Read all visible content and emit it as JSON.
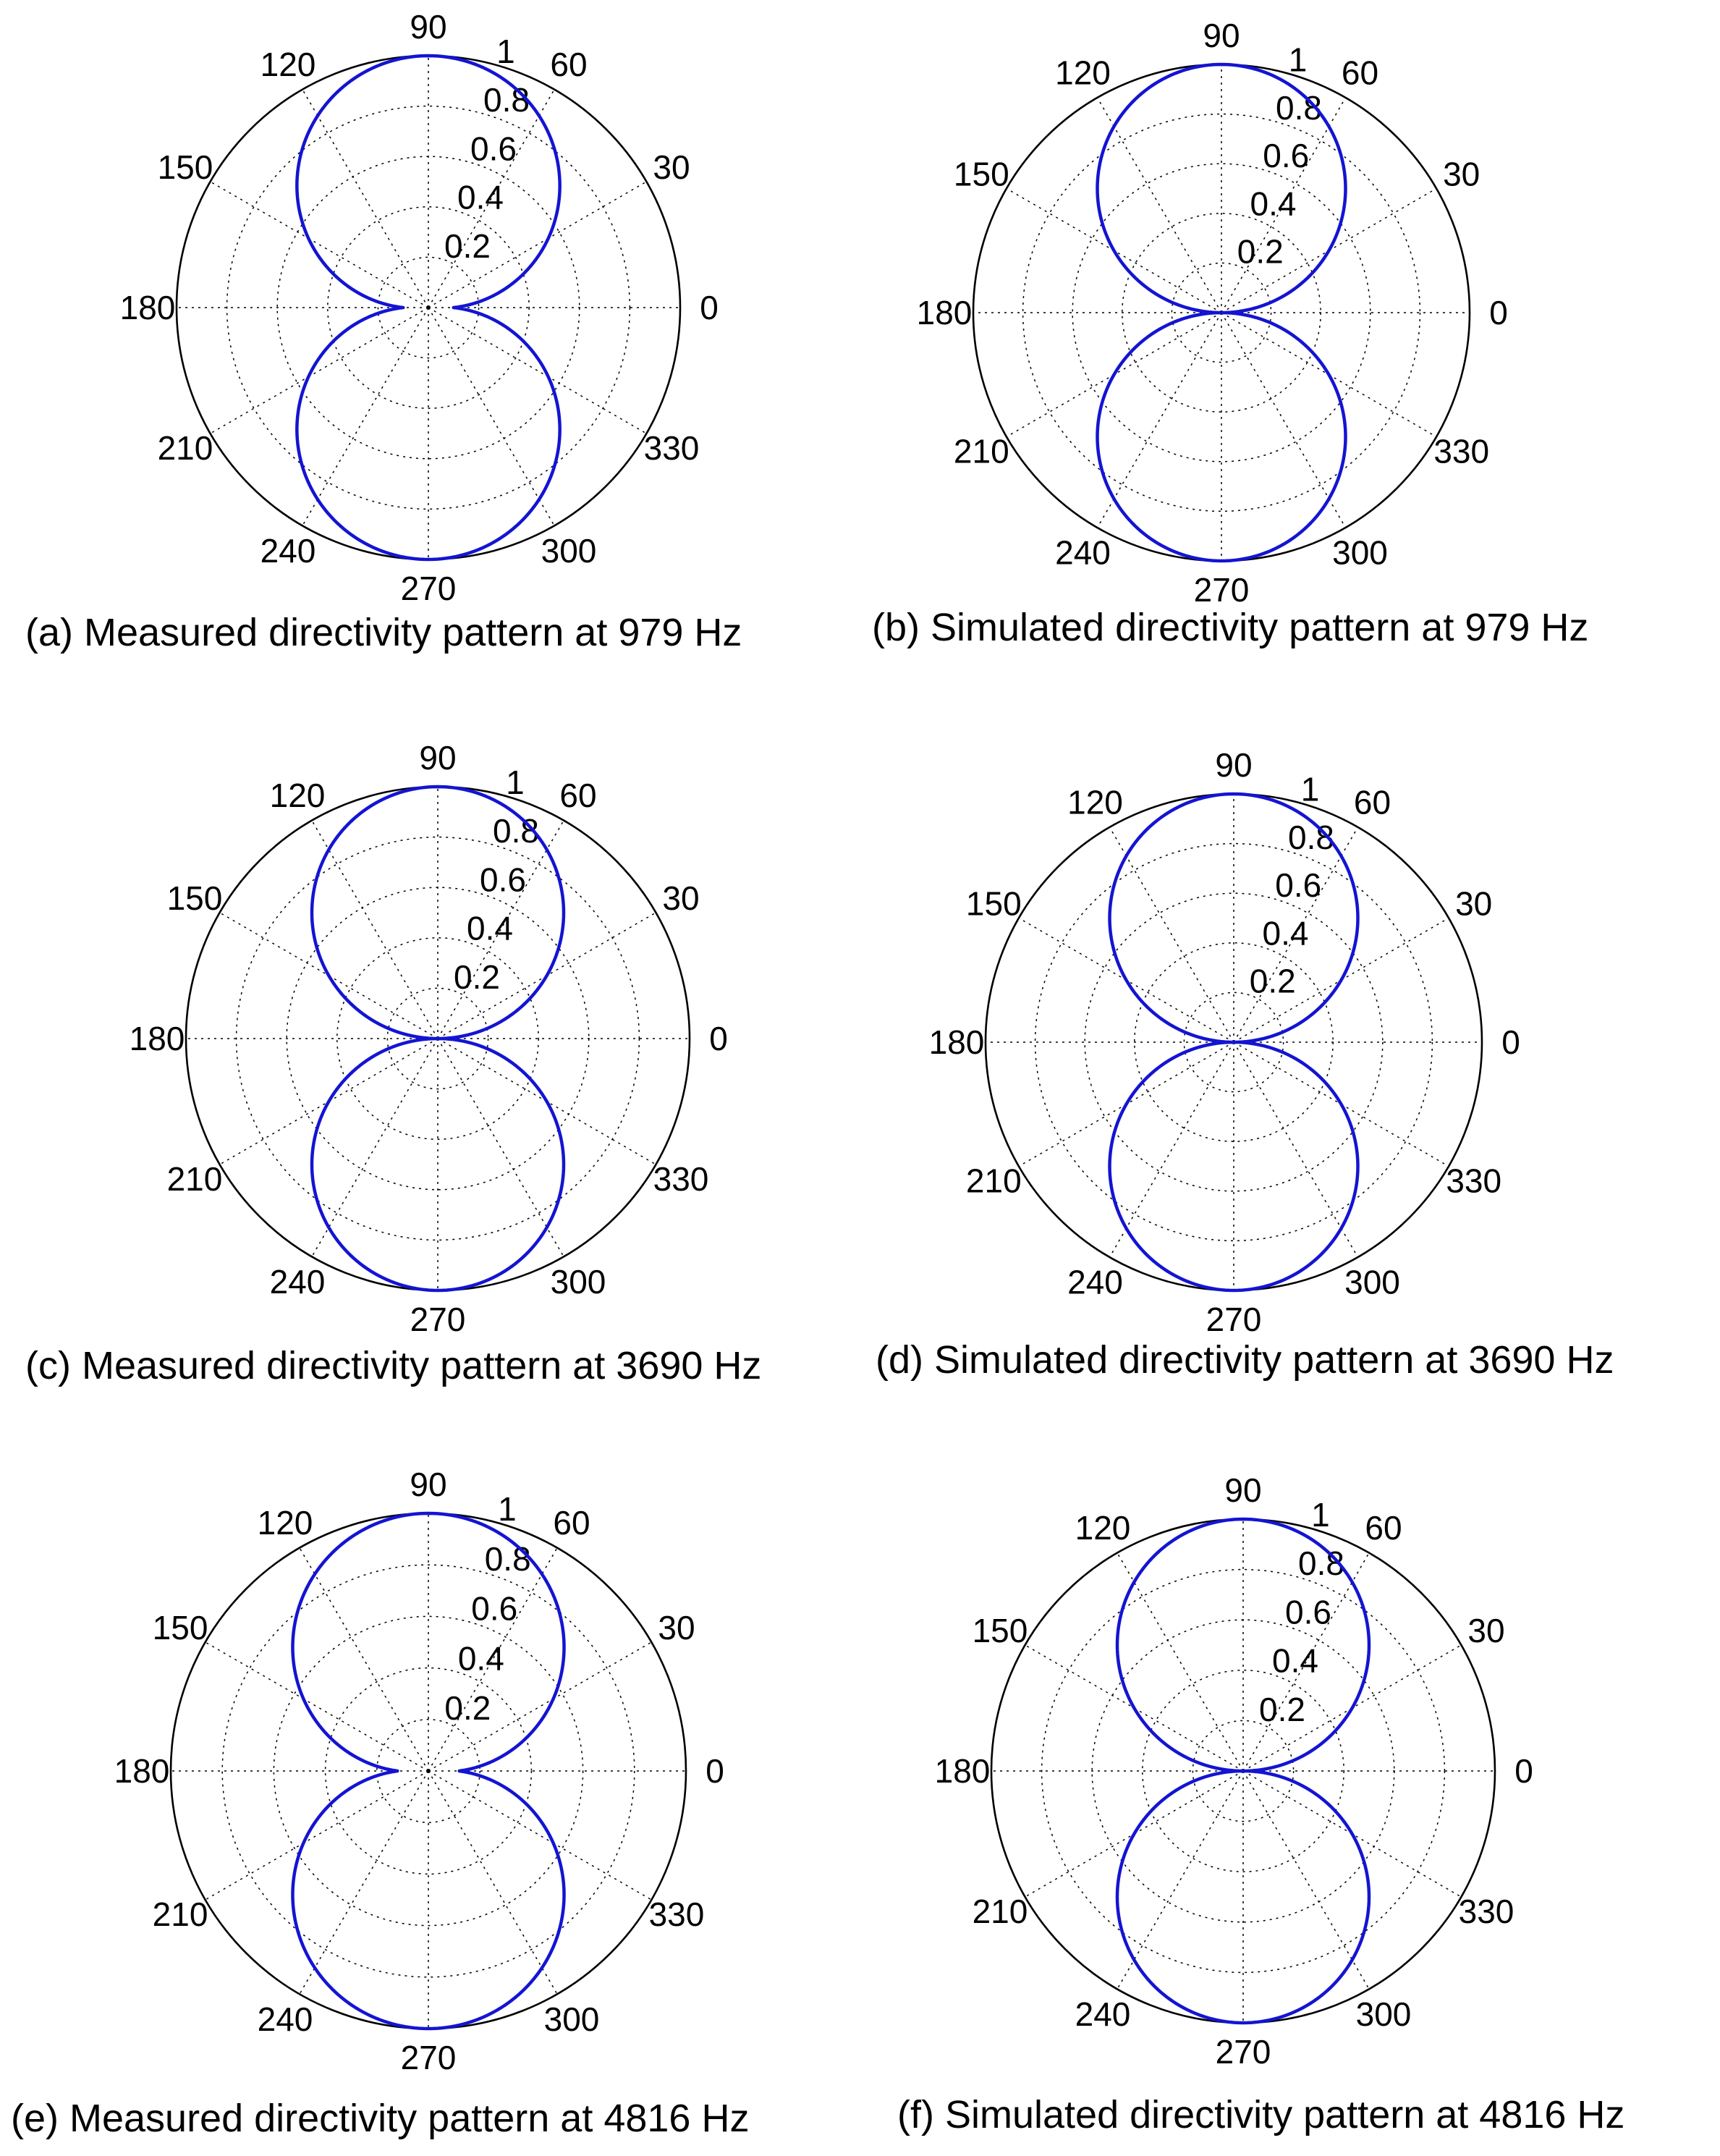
{
  "figure": {
    "panels": [
      {
        "caption": "(a) Measured directivity pattern at 979 Hz"
      },
      {
        "caption": "(b) Simulated directivity pattern at 979 Hz"
      },
      {
        "caption": "(c) Measured directivity pattern at 3690 Hz"
      },
      {
        "caption": "(d) Simulated directivity pattern at 3690 Hz"
      },
      {
        "caption": "(e) Measured directivity pattern at 4816 Hz"
      },
      {
        "caption": "(f) Simulated directivity pattern at 4816 Hz"
      }
    ]
  },
  "chart_data": [
    {
      "type": "polar",
      "angle_ticks": [
        "0",
        "30",
        "60",
        "90",
        "120",
        "150",
        "180",
        "210",
        "240",
        "270",
        "300",
        "330"
      ],
      "radial_ticks": [
        "0.2",
        "0.4",
        "0.6",
        "0.8",
        "1"
      ],
      "rlim": [
        0,
        1
      ],
      "grid": true,
      "line_color": "#1414d2",
      "series": [
        {
          "pattern": "dipole (figure-eight)",
          "null_depth": 0.1,
          "angles_deg": [
            0,
            15,
            30,
            45,
            60,
            75,
            90,
            105,
            120,
            135,
            150,
            165,
            180,
            195,
            210,
            225,
            240,
            255,
            270,
            285,
            300,
            315,
            330,
            345
          ],
          "values": [
            0.1,
            0.33,
            0.55,
            0.73,
            0.87,
            0.97,
            1.0,
            0.97,
            0.87,
            0.73,
            0.55,
            0.33,
            0.1,
            0.33,
            0.55,
            0.73,
            0.87,
            0.97,
            1.0,
            0.97,
            0.87,
            0.73,
            0.55,
            0.33
          ]
        }
      ]
    },
    {
      "type": "polar",
      "angle_ticks": [
        "0",
        "30",
        "60",
        "90",
        "120",
        "150",
        "180",
        "210",
        "240",
        "270",
        "300",
        "330"
      ],
      "radial_ticks": [
        "0.2",
        "0.4",
        "0.6",
        "0.8",
        "1"
      ],
      "rlim": [
        0,
        1
      ],
      "grid": true,
      "line_color": "#1414d2",
      "series": [
        {
          "pattern": "dipole (figure-eight)",
          "null_depth": 0.0,
          "angles_deg": [
            0,
            15,
            30,
            45,
            60,
            75,
            90,
            105,
            120,
            135,
            150,
            165,
            180,
            195,
            210,
            225,
            240,
            255,
            270,
            285,
            300,
            315,
            330,
            345
          ],
          "values": [
            0.0,
            0.26,
            0.5,
            0.71,
            0.87,
            0.97,
            1.0,
            0.97,
            0.87,
            0.71,
            0.5,
            0.26,
            0.0,
            0.26,
            0.5,
            0.71,
            0.87,
            0.97,
            1.0,
            0.97,
            0.87,
            0.71,
            0.5,
            0.26
          ]
        }
      ]
    },
    {
      "type": "polar",
      "angle_ticks": [
        "0",
        "30",
        "60",
        "90",
        "120",
        "150",
        "180",
        "210",
        "240",
        "270",
        "300",
        "330"
      ],
      "radial_ticks": [
        "0.2",
        "0.4",
        "0.6",
        "0.8",
        "1"
      ],
      "rlim": [
        0,
        1
      ],
      "grid": true,
      "line_color": "#1414d2",
      "series": [
        {
          "pattern": "dipole (figure-eight)",
          "null_depth": 0.0,
          "angles_deg": [
            0,
            15,
            30,
            45,
            60,
            75,
            90,
            105,
            120,
            135,
            150,
            165,
            180,
            195,
            210,
            225,
            240,
            255,
            270,
            285,
            300,
            315,
            330,
            345
          ],
          "values": [
            0.0,
            0.26,
            0.5,
            0.71,
            0.87,
            0.97,
            1.0,
            0.97,
            0.87,
            0.71,
            0.5,
            0.26,
            0.0,
            0.26,
            0.5,
            0.71,
            0.87,
            0.97,
            1.0,
            0.97,
            0.87,
            0.71,
            0.5,
            0.26
          ]
        }
      ]
    },
    {
      "type": "polar",
      "angle_ticks": [
        "0",
        "30",
        "60",
        "90",
        "120",
        "150",
        "180",
        "210",
        "240",
        "270",
        "300",
        "330"
      ],
      "radial_ticks": [
        "0.2",
        "0.4",
        "0.6",
        "0.8",
        "1"
      ],
      "rlim": [
        0,
        1
      ],
      "grid": true,
      "line_color": "#1414d2",
      "series": [
        {
          "pattern": "dipole (figure-eight)",
          "null_depth": 0.0,
          "angles_deg": [
            0,
            15,
            30,
            45,
            60,
            75,
            90,
            105,
            120,
            135,
            150,
            165,
            180,
            195,
            210,
            225,
            240,
            255,
            270,
            285,
            300,
            315,
            330,
            345
          ],
          "values": [
            0.0,
            0.26,
            0.5,
            0.71,
            0.87,
            0.97,
            1.0,
            0.97,
            0.87,
            0.71,
            0.5,
            0.26,
            0.0,
            0.26,
            0.5,
            0.71,
            0.87,
            0.97,
            1.0,
            0.97,
            0.87,
            0.71,
            0.5,
            0.26
          ]
        }
      ]
    },
    {
      "type": "polar",
      "angle_ticks": [
        "0",
        "30",
        "60",
        "90",
        "120",
        "150",
        "180",
        "210",
        "240",
        "270",
        "300",
        "330"
      ],
      "radial_ticks": [
        "0.2",
        "0.4",
        "0.6",
        "0.8",
        "1"
      ],
      "rlim": [
        0,
        1
      ],
      "grid": true,
      "line_color": "#1414d2",
      "series": [
        {
          "pattern": "dipole (figure-eight)",
          "null_depth": 0.12,
          "angles_deg": [
            0,
            15,
            30,
            45,
            60,
            75,
            90,
            105,
            120,
            135,
            150,
            165,
            180,
            195,
            210,
            225,
            240,
            255,
            270,
            285,
            300,
            315,
            330,
            345
          ],
          "values": [
            0.12,
            0.35,
            0.56,
            0.74,
            0.88,
            0.97,
            1.0,
            0.97,
            0.88,
            0.74,
            0.56,
            0.35,
            0.12,
            0.35,
            0.56,
            0.74,
            0.88,
            0.97,
            1.0,
            0.97,
            0.88,
            0.74,
            0.56,
            0.35
          ]
        }
      ]
    },
    {
      "type": "polar",
      "angle_ticks": [
        "0",
        "30",
        "60",
        "90",
        "120",
        "150",
        "180",
        "210",
        "240",
        "270",
        "300",
        "330"
      ],
      "radial_ticks": [
        "0.2",
        "0.4",
        "0.6",
        "0.8",
        "1"
      ],
      "rlim": [
        0,
        1
      ],
      "grid": true,
      "line_color": "#1414d2",
      "series": [
        {
          "pattern": "dipole (figure-eight)",
          "null_depth": 0.0,
          "angles_deg": [
            0,
            15,
            30,
            45,
            60,
            75,
            90,
            105,
            120,
            135,
            150,
            165,
            180,
            195,
            210,
            225,
            240,
            255,
            270,
            285,
            300,
            315,
            330,
            345
          ],
          "values": [
            0.0,
            0.26,
            0.5,
            0.71,
            0.87,
            0.97,
            1.0,
            0.97,
            0.87,
            0.71,
            0.5,
            0.26,
            0.0,
            0.26,
            0.5,
            0.71,
            0.87,
            0.97,
            1.0,
            0.97,
            0.87,
            0.71,
            0.5,
            0.26
          ]
        }
      ]
    }
  ]
}
